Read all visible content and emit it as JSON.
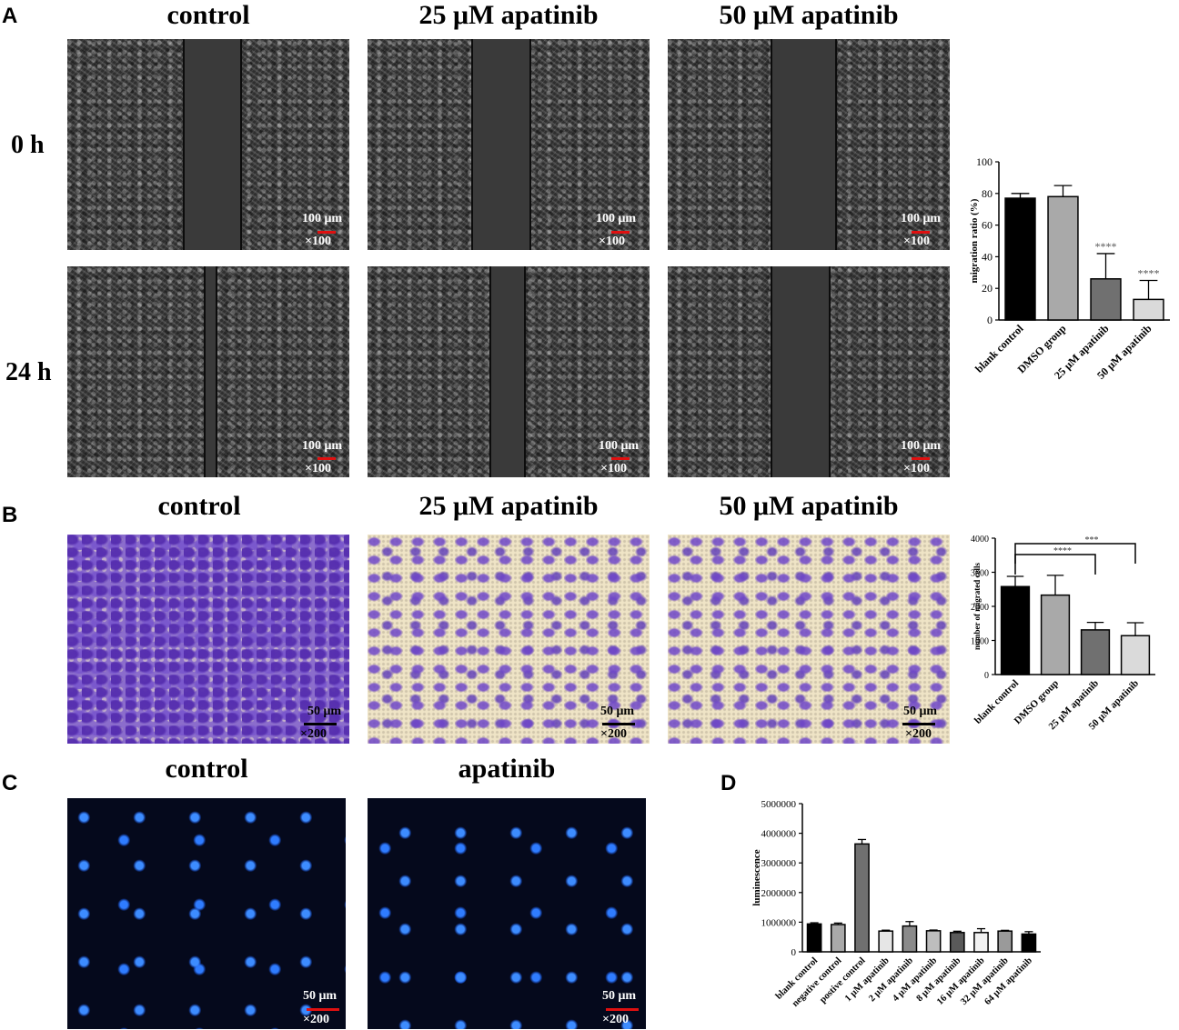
{
  "panel_labels": {
    "a": "A",
    "b": "B",
    "c": "C",
    "d": "D"
  },
  "panel_a": {
    "columns": [
      "control",
      "25 μM apatinib",
      "50 μM apatinib"
    ],
    "rows": [
      "0 h",
      "24 h"
    ],
    "scale_text": "100 μm",
    "magnification": "×100"
  },
  "panel_b": {
    "columns": [
      "control",
      "25 μM apatinib",
      "50 μM apatinib"
    ],
    "scale_text": "50 μm",
    "magnification": "×200"
  },
  "panel_c": {
    "columns": [
      "control",
      "apatinib"
    ],
    "scale_text": "50 μm",
    "magnification": "×200"
  },
  "chart_data": [
    {
      "id": "migration",
      "type": "bar",
      "ylabel": "migration ratio (%)",
      "ylim": [
        0,
        100
      ],
      "yticks": [
        0,
        20,
        40,
        60,
        80,
        100
      ],
      "categories": [
        "blank control",
        "DMSO group",
        "25 μM apatinib",
        "50 μM apatinib"
      ],
      "values": [
        77,
        78,
        26,
        13
      ],
      "errors": [
        3,
        7,
        16,
        12
      ],
      "colors": [
        "#000000",
        "#a9a9a9",
        "#707070",
        "#dadada"
      ],
      "annotations": [
        "",
        "",
        "****",
        "****"
      ]
    },
    {
      "id": "invasion",
      "type": "bar",
      "ylabel": "number of migrated cells",
      "ylim": [
        0,
        4000
      ],
      "yticks": [
        0,
        1000,
        2000,
        3000,
        4000
      ],
      "categories": [
        "blank control",
        "DMSO group",
        "25 μM apatinib",
        "50 μM apatinib"
      ],
      "values": [
        2580,
        2330,
        1310,
        1140
      ],
      "errors": [
        300,
        580,
        220,
        380
      ],
      "colors": [
        "#000000",
        "#a9a9a9",
        "#707070",
        "#dadada"
      ],
      "brackets": [
        {
          "from": 0,
          "to": 3,
          "label": "***"
        },
        {
          "from": 0,
          "to": 2,
          "label": "****"
        }
      ]
    },
    {
      "id": "luminescence",
      "type": "bar",
      "ylabel": "luminescence",
      "ylim": [
        0,
        5000000
      ],
      "yticks": [
        0,
        1000000,
        2000000,
        3000000,
        4000000,
        5000000
      ],
      "categories": [
        "blank control",
        "negative control",
        "postive control",
        "1 μM apatinib",
        "2 μM apatinib",
        "4 μM apatinib",
        "8 μM apatinib",
        "16 μM apatinib",
        "32 μM apatinib",
        "64 μM apatinib"
      ],
      "values": [
        940000,
        920000,
        3640000,
        700000,
        870000,
        710000,
        650000,
        650000,
        700000,
        600000
      ],
      "errors": [
        40000,
        50000,
        150000,
        30000,
        150000,
        25000,
        45000,
        130000,
        25000,
        80000
      ],
      "colors": [
        "#000000",
        "#a9a9a9",
        "#707070",
        "#e6e6e6",
        "#8a8a8a",
        "#bdbdbd",
        "#5a5a5a",
        "#f2f2f2",
        "#9a9a9a",
        "#000000"
      ]
    }
  ]
}
